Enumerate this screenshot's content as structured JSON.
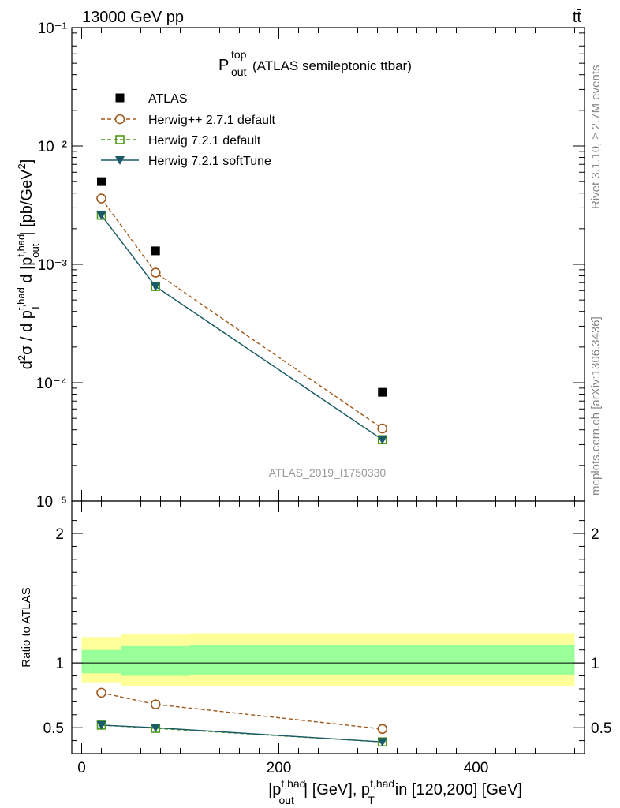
{
  "header": {
    "energy": "13000 GeV pp",
    "process": "tt̄"
  },
  "title": {
    "main": "P",
    "sup": "top",
    "sub": "out",
    "rest": "(ATLAS semileptonic ttbar)"
  },
  "analysis_id": "ATLAS_2019_I1750330",
  "side_labels": {
    "rivet": "Rivet 3.1.10, ≥ 2.7M events",
    "mcplots": "mcplots.cern.ch [arXiv:1306.3436]"
  },
  "colors": {
    "atlas": "#000000",
    "herwigpp": "#a0581a",
    "herwig721": "#4c9a16",
    "softtune": "#1b5a6a",
    "band_outer": "#ffff99",
    "band_inner": "#99ff99"
  },
  "chart_data": [
    {
      "type": "scatter",
      "panel": "main",
      "ylabel": "d²σ / d p_T^{t,had} d |p_out^{t,had}| [pb/GeV²]",
      "yscale": "log",
      "ylim": [
        1e-05,
        0.1
      ],
      "xlim": [
        -10,
        510
      ],
      "ytick_labels": [
        "10⁻¹",
        "10⁻²",
        "10⁻³",
        "10⁻⁴",
        "10⁻⁵"
      ],
      "series": [
        {
          "name": "ATLAS",
          "style": "square-markers",
          "x": [
            20,
            75,
            305
          ],
          "y": [
            0.005,
            0.0013,
            8.3e-05
          ]
        },
        {
          "name": "Herwig++ 2.7.1 default",
          "style": "dashed-open-circle",
          "x": [
            20,
            75,
            305
          ],
          "y": [
            0.0036,
            0.00085,
            4.1e-05
          ]
        },
        {
          "name": "Herwig 7.2.1 default",
          "style": "dashed-open-square",
          "x": [
            20,
            75,
            305
          ],
          "y": [
            0.0026,
            0.00065,
            3.3e-05
          ]
        },
        {
          "name": "Herwig 7.2.1 softTune",
          "style": "solid-down-triangle",
          "x": [
            20,
            75,
            305
          ],
          "y": [
            0.0026,
            0.00065,
            3.3e-05
          ]
        }
      ]
    },
    {
      "type": "line",
      "panel": "ratio",
      "ylabel": "Ratio to ATLAS",
      "xlabel": "|p_out^{t,had}| [GeV], p_T^{t,had} in [120,200] [GeV]",
      "ylim": [
        0.3,
        2.25
      ],
      "xlim": [
        -10,
        510
      ],
      "ytick_labels": [
        "0.5",
        "1",
        "2"
      ],
      "xtick_labels": [
        "0",
        "200",
        "400"
      ],
      "bands": [
        {
          "x0": 0,
          "x1": 40,
          "outer": [
            0.85,
            1.2
          ],
          "inner": [
            0.92,
            1.1
          ]
        },
        {
          "x0": 40,
          "x1": 110,
          "outer": [
            0.82,
            1.22
          ],
          "inner": [
            0.9,
            1.13
          ]
        },
        {
          "x0": 110,
          "x1": 500,
          "outer": [
            0.82,
            1.23
          ],
          "inner": [
            0.91,
            1.14
          ]
        }
      ],
      "series": [
        {
          "name": "Herwig++ 2.7.1 default",
          "x": [
            20,
            75,
            305
          ],
          "y": [
            0.77,
            0.68,
            0.49
          ]
        },
        {
          "name": "Herwig 7.2.1 default",
          "x": [
            20,
            75,
            305
          ],
          "y": [
            0.52,
            0.495,
            0.39
          ]
        },
        {
          "name": "Herwig 7.2.1 softTune",
          "x": [
            20,
            75,
            305
          ],
          "y": [
            0.52,
            0.5,
            0.39
          ]
        }
      ]
    }
  ]
}
